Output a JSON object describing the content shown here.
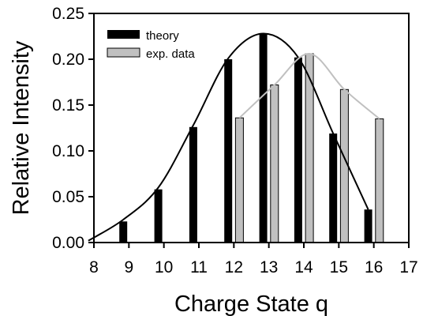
{
  "chart_data": {
    "type": "bar",
    "title": "",
    "xlabel": "Charge State q",
    "ylabel": "Relative Intensity",
    "xlim": [
      8,
      17
    ],
    "ylim": [
      0,
      0.25
    ],
    "xticks": [
      "8",
      "9",
      "10",
      "11",
      "12",
      "13",
      "14",
      "15",
      "16",
      "17"
    ],
    "yticks": [
      "0.00",
      "0.05",
      "0.10",
      "0.15",
      "0.20",
      "0.25"
    ],
    "grid": false,
    "legend_position": "top-left",
    "series": [
      {
        "name": "theory",
        "color": "#000000",
        "x": [
          9,
          10,
          11,
          12,
          13,
          14,
          15,
          16
        ],
        "values": [
          0.023,
          0.058,
          0.126,
          0.2,
          0.228,
          0.202,
          0.119,
          0.036
        ],
        "curve": {
          "x": [
            8,
            9,
            10,
            11,
            12,
            13,
            14,
            15,
            16
          ],
          "y": [
            0.002,
            0.025,
            0.06,
            0.128,
            0.201,
            0.228,
            0.202,
            0.119,
            0.036
          ]
        }
      },
      {
        "name": "exp. data",
        "color": "#c0c0c0",
        "x": [
          12,
          13,
          14,
          15,
          16
        ],
        "values": [
          0.136,
          0.172,
          0.206,
          0.167,
          0.135
        ],
        "curve": {
          "x": [
            12,
            13,
            14,
            15,
            16
          ],
          "y": [
            0.136,
            0.172,
            0.206,
            0.167,
            0.135
          ]
        }
      }
    ]
  }
}
